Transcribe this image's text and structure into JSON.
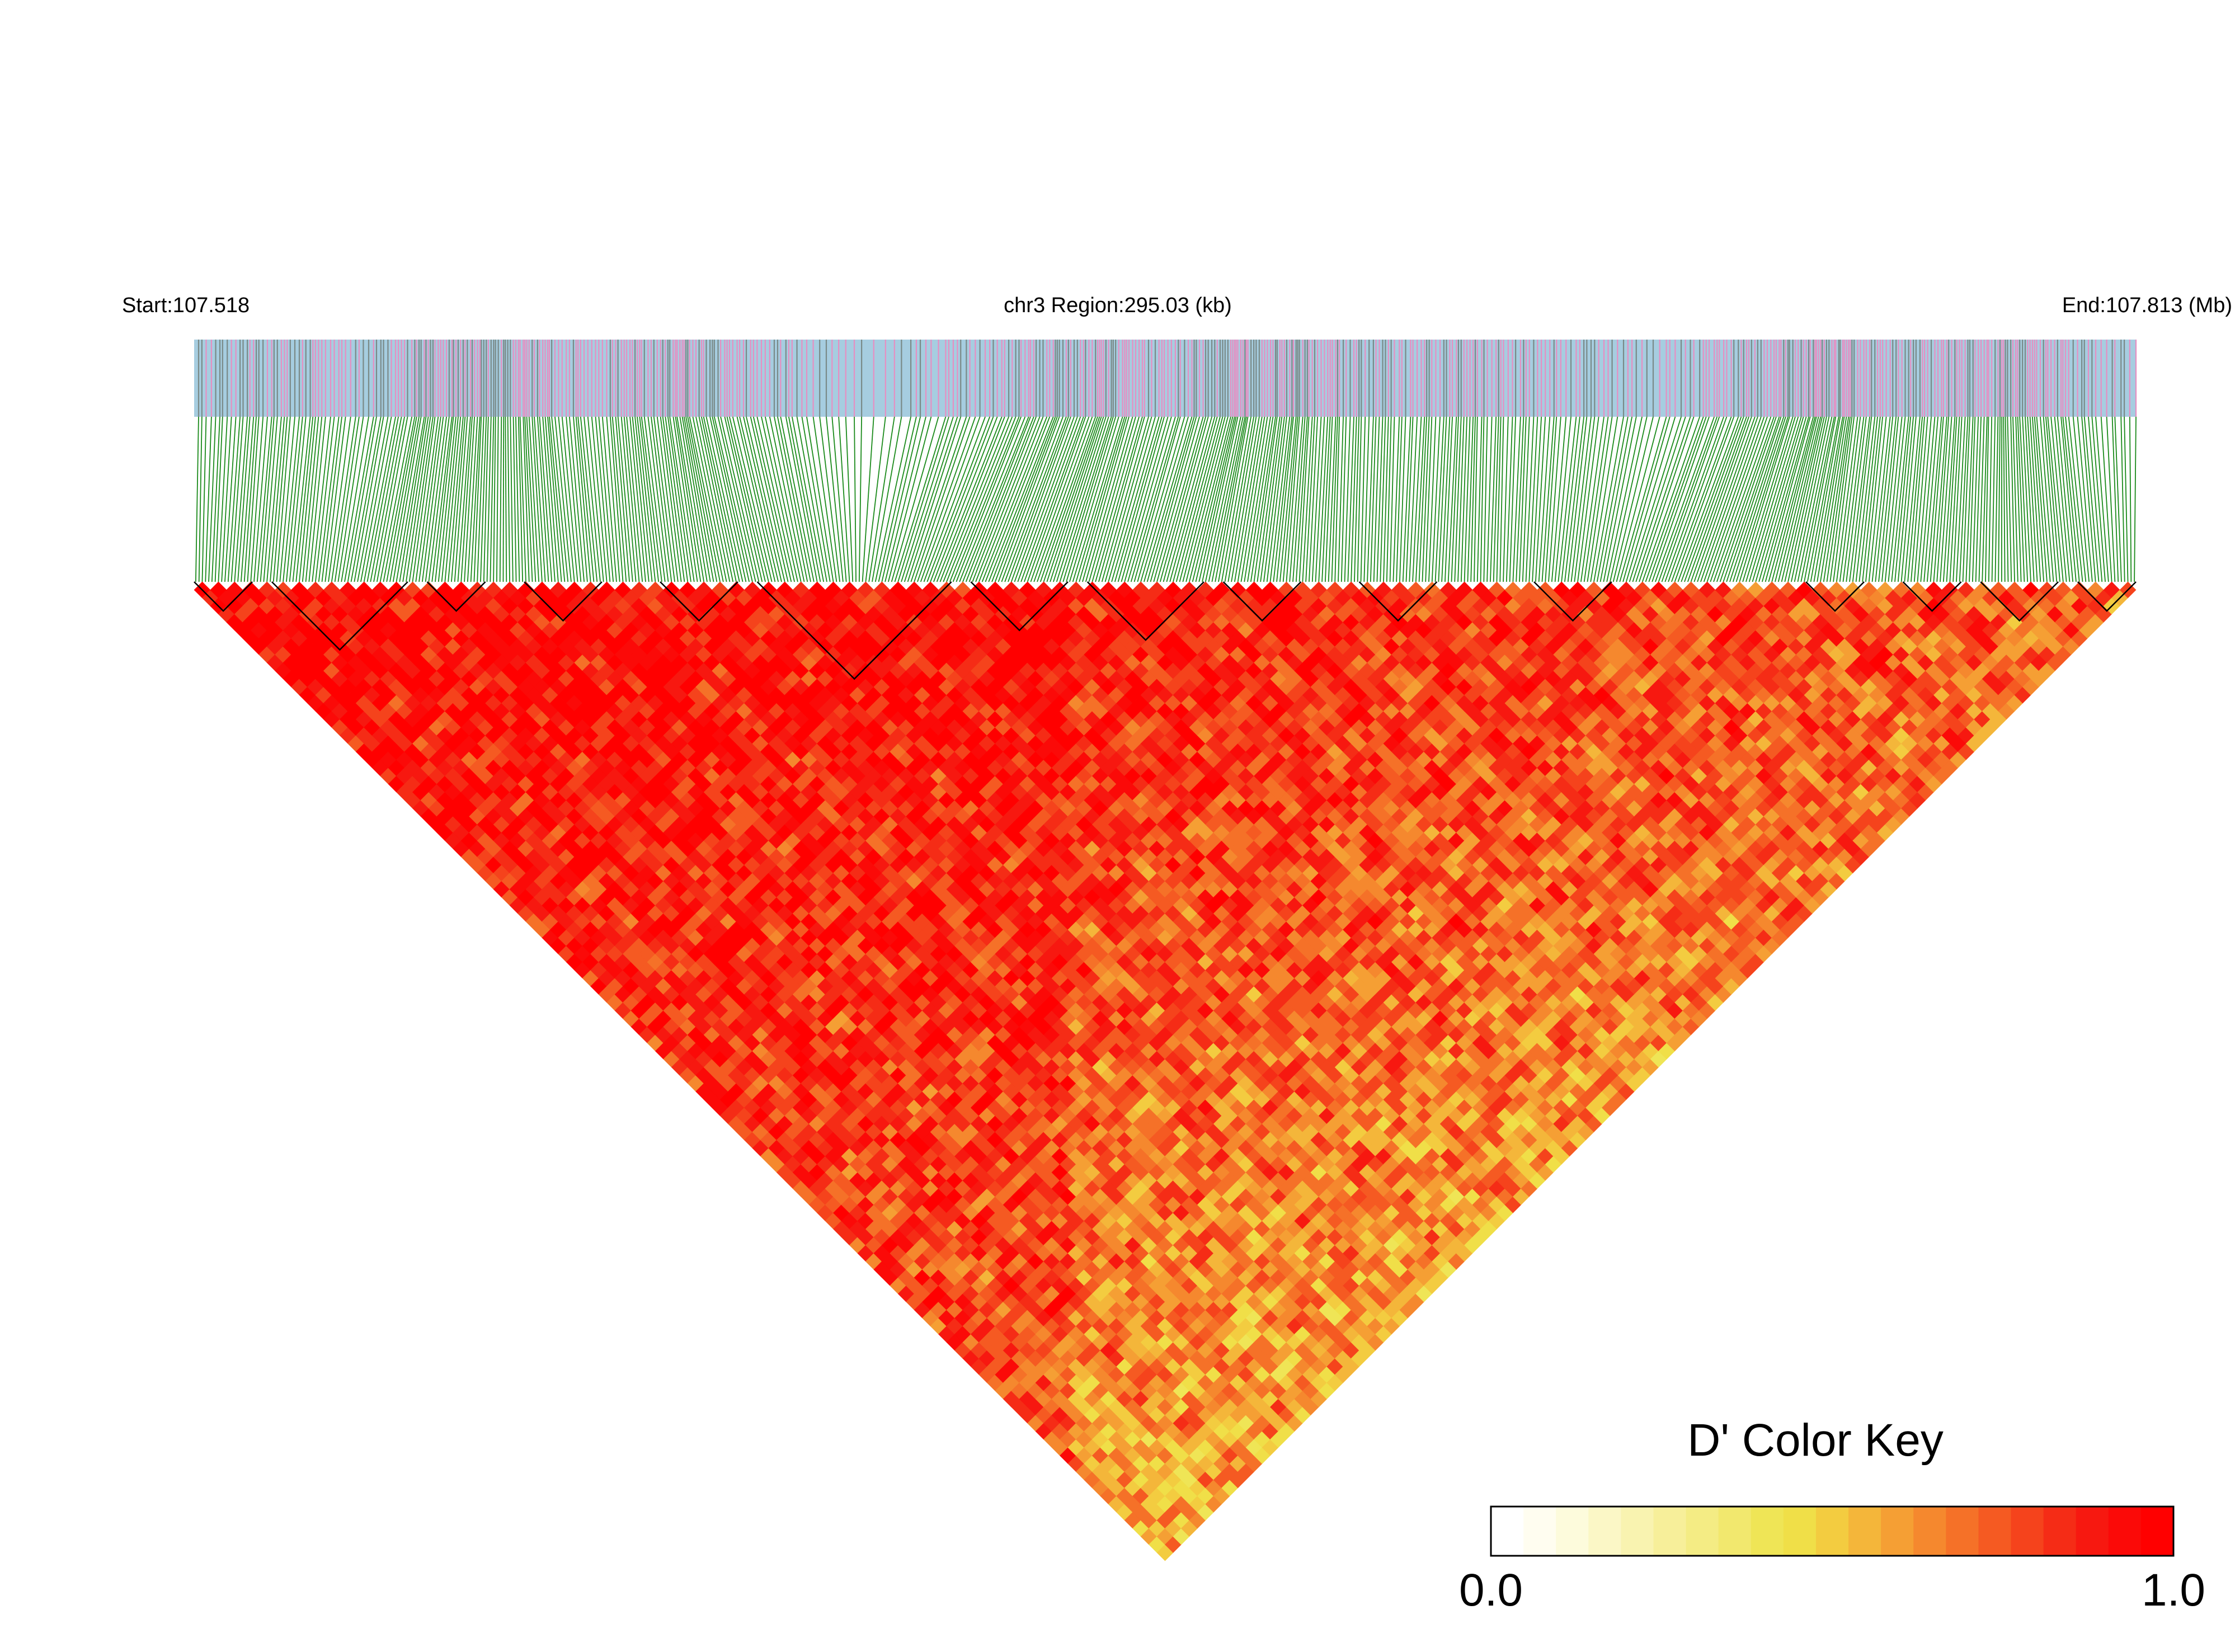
{
  "header": {
    "start_label": "Start:107.518",
    "region_label": "chr3 Region:295.03 (kb)",
    "end_label": "End:107.813 (Mb)"
  },
  "region": {
    "chromosome": "chr3",
    "start_mb": 107.518,
    "end_mb": 107.813,
    "length_kb": 295.03
  },
  "heatmap": {
    "metric": "D'",
    "snp_count": 600
  },
  "color_key": {
    "title": "D' Color Key",
    "min_label": "0.0",
    "max_label": "1.0",
    "min": 0.0,
    "max": 1.0,
    "steps": [
      "#ffffff",
      "#fffdf0",
      "#fdfbdc",
      "#fbf7c6",
      "#f9f3b0",
      "#f7ef9a",
      "#f4ec84",
      "#f2e86e",
      "#efe556",
      "#f0df48",
      "#f3cc40",
      "#f4b63a",
      "#f59f34",
      "#f5882e",
      "#f57128",
      "#f55a22",
      "#f5431c",
      "#f52c16",
      "#f71810",
      "#fb0a08",
      "#ff0000"
    ]
  },
  "colors": {
    "snp_band_bg": "#a6cde0",
    "snp_band_tick_a": "#e68fc2",
    "snp_band_tick_b": "#7a8a88",
    "connector": "#1a8a1a",
    "ld_high": "#ff0000",
    "ld_low": "#fff1a0",
    "block_outline": "#000000"
  }
}
